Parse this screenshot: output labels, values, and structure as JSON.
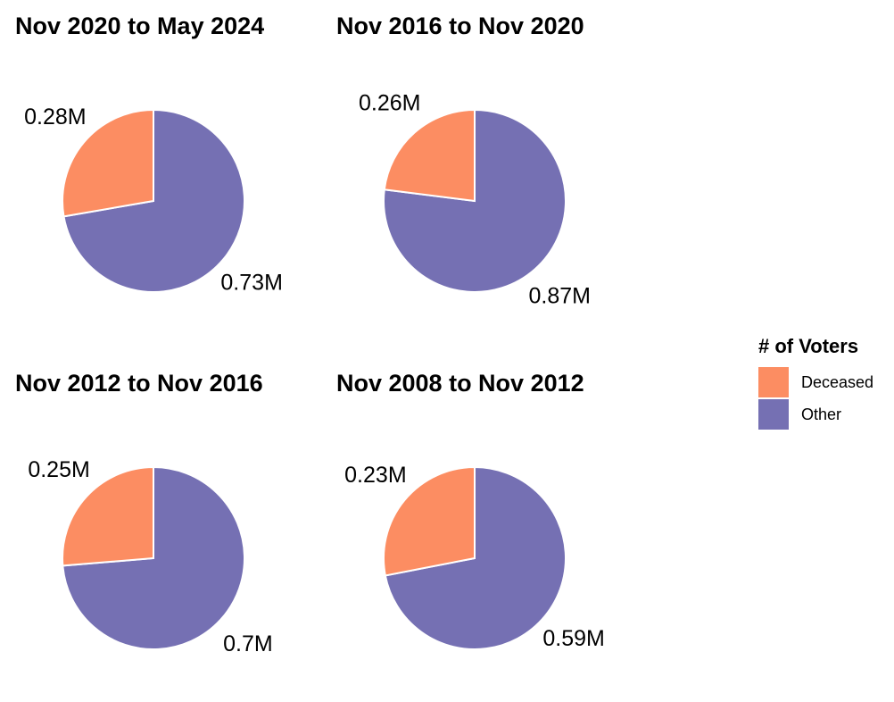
{
  "chart_data": {
    "type": "pie",
    "colors": {
      "deceased": "#fc8d62",
      "other": "#7570b3"
    },
    "legend": {
      "title": "# of Voters",
      "position": "right",
      "items": [
        {
          "key": "deceased",
          "label": "Deceased"
        },
        {
          "key": "other",
          "label": "Other"
        }
      ]
    },
    "panels": [
      {
        "title": "Nov 2020 to May 2024",
        "slices": [
          {
            "key": "deceased",
            "label": "Deceased",
            "value": 0.28,
            "value_label": "0.28M"
          },
          {
            "key": "other",
            "label": "Other",
            "value": 0.73,
            "value_label": "0.73M"
          }
        ]
      },
      {
        "title": "Nov 2016 to Nov 2020",
        "slices": [
          {
            "key": "deceased",
            "label": "Deceased",
            "value": 0.26,
            "value_label": "0.26M"
          },
          {
            "key": "other",
            "label": "Other",
            "value": 0.87,
            "value_label": "0.87M"
          }
        ]
      },
      {
        "title": "Nov 2012 to Nov 2016",
        "slices": [
          {
            "key": "deceased",
            "label": "Deceased",
            "value": 0.25,
            "value_label": "0.25M"
          },
          {
            "key": "other",
            "label": "Other",
            "value": 0.7,
            "value_label": "0.7M"
          }
        ]
      },
      {
        "title": "Nov 2008 to Nov 2012",
        "slices": [
          {
            "key": "deceased",
            "label": "Deceased",
            "value": 0.23,
            "value_label": "0.23M"
          },
          {
            "key": "other",
            "label": "Other",
            "value": 0.59,
            "value_label": "0.59M"
          }
        ]
      }
    ]
  }
}
